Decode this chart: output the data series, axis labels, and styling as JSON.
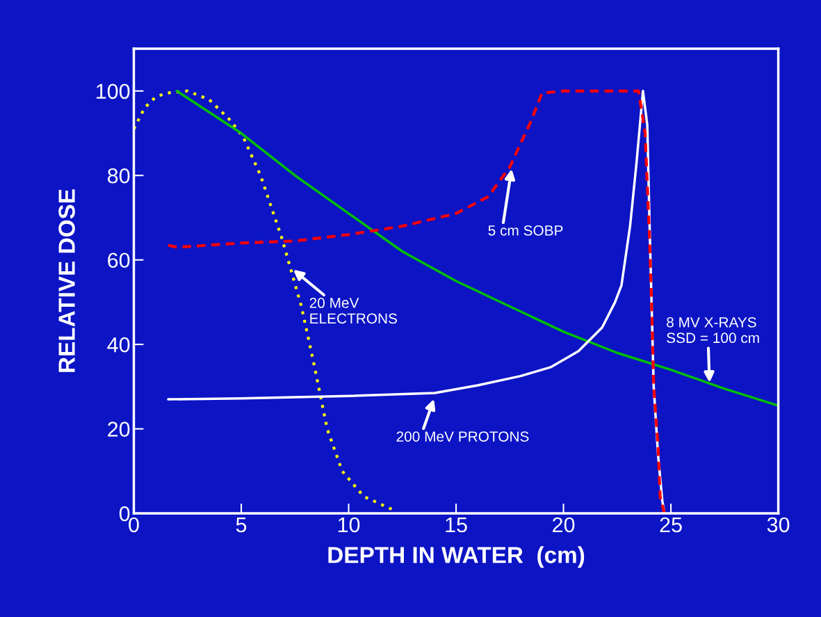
{
  "chart_data": {
    "type": "line",
    "xlabel": "DEPTH IN WATER  (cm)",
    "ylabel": "RELATIVE DOSE",
    "xlim": [
      0,
      30
    ],
    "ylim": [
      0,
      110
    ],
    "xticks": [
      0,
      5,
      10,
      15,
      20,
      25,
      30
    ],
    "yticks": [
      0,
      20,
      40,
      60,
      80,
      100
    ],
    "grid": false,
    "marker": "none",
    "series": [
      {
        "color": "#ffff00",
        "line_style": "dotted",
        "x": [
          0,
          0.5,
          1,
          1.5,
          2.5,
          3.5,
          4.5,
          5.1,
          5.9,
          6.9,
          7.8,
          8.4,
          9,
          9.7,
          10.7,
          12
        ],
        "values": [
          91,
          96,
          98.5,
          99.5,
          100,
          98,
          93,
          89,
          80,
          65,
          49,
          35,
          20,
          10,
          4,
          1
        ]
      },
      {
        "color": "#00c000",
        "line_style": "solid",
        "x": [
          2,
          5,
          7.5,
          10,
          12.5,
          15,
          17.5,
          20,
          22.5,
          25,
          27.5,
          30
        ],
        "values": [
          100,
          90,
          80,
          71,
          62,
          55,
          49,
          43,
          38,
          34,
          29.5,
          25.5
        ]
      },
      {
        "color": "#ffffff",
        "line_style": "solid",
        "x": [
          1.6,
          5,
          10,
          14,
          16,
          18,
          19.4,
          20.7,
          21.8,
          22.4,
          22.7,
          23.1,
          23.4,
          23.7,
          23.9,
          24.0,
          24.1,
          24.2,
          24.4,
          24.6,
          24.7
        ],
        "values": [
          27,
          27.2,
          27.8,
          28.5,
          30.3,
          32.5,
          34.6,
          38.4,
          44,
          50,
          54,
          68,
          83,
          100,
          92,
          70,
          50,
          30,
          14,
          3,
          0
        ]
      },
      {
        "color": "#ff0000",
        "line_style": "dashed",
        "x": [
          1.6,
          2,
          5,
          7.5,
          10,
          12.5,
          15,
          16.5,
          17.5,
          18.5,
          19,
          20,
          22,
          23.5,
          23.8,
          24,
          24.1,
          24.2,
          24.4,
          24.5,
          24.7
        ],
        "values": [
          63.5,
          63,
          64,
          64.5,
          66,
          68,
          71,
          75,
          82,
          93,
          99.5,
          100,
          100,
          100,
          90,
          66,
          50,
          30,
          16,
          4,
          0
        ]
      }
    ],
    "annotations": [
      {
        "text": "5 cm SOBP",
        "x": 17.6,
        "y": 82
      },
      {
        "text": "20 MeV\nELECTRONS",
        "x": 7.35,
        "y": 58
      },
      {
        "text": "200 MeV PROTONS",
        "x": 14,
        "y": 27.5
      },
      {
        "text": "8 MV X-RAYS\nSSD = 100 cm",
        "x": 26.8,
        "y": 30.5
      }
    ]
  }
}
